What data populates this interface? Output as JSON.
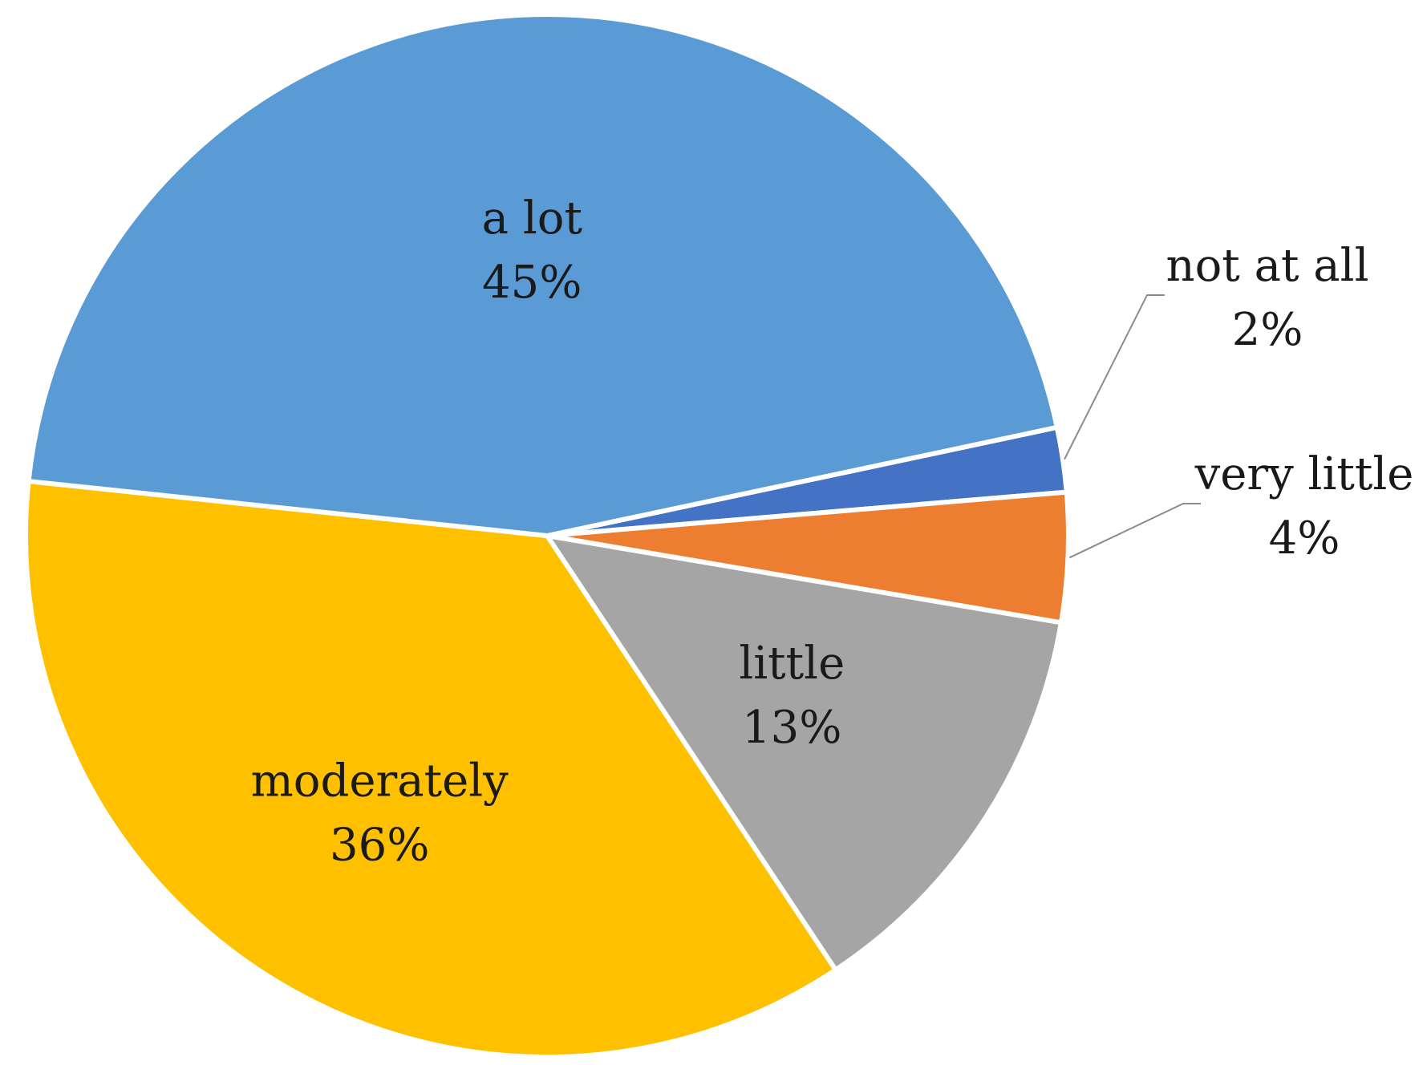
{
  "chart_data": {
    "type": "pie",
    "title": "",
    "legend": "none",
    "slices": [
      {
        "label": "not at all",
        "value": 2,
        "value_label": "2%",
        "color": "#4472c4"
      },
      {
        "label": "very little",
        "value": 4,
        "value_label": "4%",
        "color": "#ed7d31"
      },
      {
        "label": "little",
        "value": 13,
        "value_label": "13%",
        "color": "#a5a5a5"
      },
      {
        "label": "moderately",
        "value": 36,
        "value_label": "36%",
        "color": "#ffc000"
      },
      {
        "label": "a lot",
        "value": 45,
        "value_label": "45%",
        "color": "#5b9bd5"
      }
    ]
  }
}
